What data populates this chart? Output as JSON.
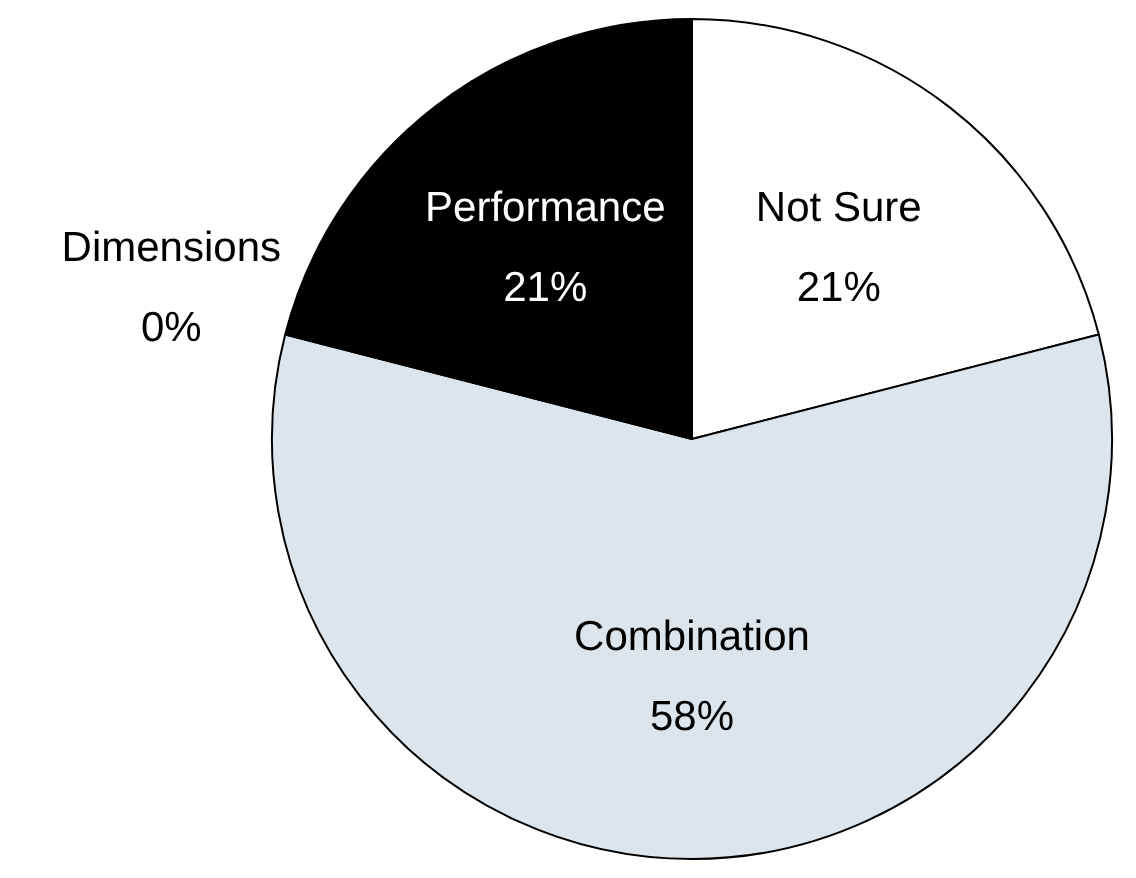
{
  "chart_data": {
    "type": "pie",
    "categories": [
      "Not Sure",
      "Combination",
      "Dimensions",
      "Performance"
    ],
    "values": [
      21,
      58,
      0,
      21
    ],
    "colors": [
      "#ffffff",
      "#dde5ec",
      "#7f7f7f",
      "#000000"
    ],
    "value_labels": [
      "21%",
      "58%",
      "0%",
      "21%"
    ]
  }
}
